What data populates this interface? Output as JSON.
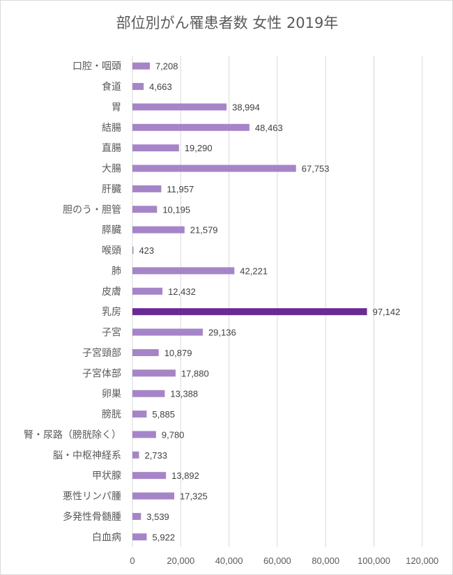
{
  "title": "部位別がん罹患者数 女性 2019年",
  "colors": {
    "bar": "#a585c8",
    "highlight": "#6a2a96",
    "grid": "#d9d9d9",
    "text": "#595959"
  },
  "chart_data": {
    "type": "bar",
    "orientation": "horizontal",
    "title": "部位別がん罹患者数 女性 2019年",
    "xlim": [
      0,
      120000
    ],
    "x_ticks": [
      "0",
      "20,000",
      "40,000",
      "60,000",
      "80,000",
      "100,000",
      "120,000"
    ],
    "grid": true,
    "highlighted_category": "乳房",
    "categories": [
      "口腔・咽頭",
      "食道",
      "胃",
      "結腸",
      "直腸",
      "大腸",
      "肝臓",
      "胆のう・胆管",
      "膵臓",
      "喉頭",
      "肺",
      "皮膚",
      "乳房",
      "子宮",
      "子宮頸部",
      "子宮体部",
      "卵巣",
      "膀胱",
      "腎・尿路（膀胱除く）",
      "脳・中枢神経系",
      "甲状腺",
      "悪性リンパ腫",
      "多発性骨髄腫",
      "白血病"
    ],
    "values": [
      7208,
      4663,
      38994,
      48463,
      19290,
      67753,
      11957,
      10195,
      21579,
      423,
      42221,
      12432,
      97142,
      29136,
      10879,
      17880,
      13388,
      5885,
      9780,
      2733,
      13892,
      17325,
      3539,
      5922
    ],
    "value_labels": [
      "7,208",
      "4,663",
      "38,994",
      "48,463",
      "19,290",
      "67,753",
      "11,957",
      "10,195",
      "21,579",
      "423",
      "42,221",
      "12,432",
      "97,142",
      "29,136",
      "10,879",
      "17,880",
      "13,388",
      "5,885",
      "9,780",
      "2,733",
      "13,892",
      "17,325",
      "3,539",
      "5,922"
    ]
  }
}
